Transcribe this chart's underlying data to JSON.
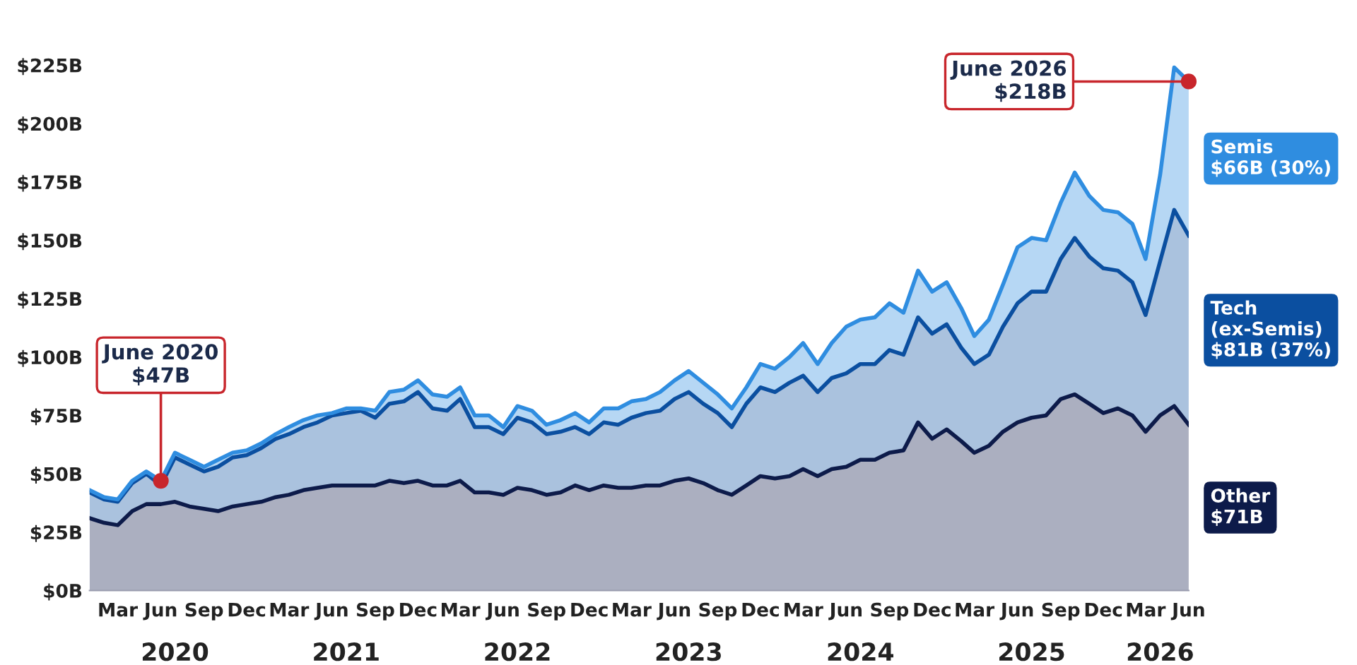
{
  "chart_data": {
    "type": "area",
    "stacked": true,
    "x": [
      "2020-01",
      "2020-02",
      "2020-03",
      "2020-04",
      "2020-05",
      "2020-06",
      "2020-07",
      "2020-08",
      "2020-09",
      "2020-10",
      "2020-11",
      "2020-12",
      "2021-01",
      "2021-02",
      "2021-03",
      "2021-04",
      "2021-05",
      "2021-06",
      "2021-07",
      "2021-08",
      "2021-09",
      "2021-10",
      "2021-11",
      "2021-12",
      "2022-01",
      "2022-02",
      "2022-03",
      "2022-04",
      "2022-05",
      "2022-06",
      "2022-07",
      "2022-08",
      "2022-09",
      "2022-10",
      "2022-11",
      "2022-12",
      "2023-01",
      "2023-02",
      "2023-03",
      "2023-04",
      "2023-05",
      "2023-06",
      "2023-07",
      "2023-08",
      "2023-09",
      "2023-10",
      "2023-11",
      "2023-12",
      "2024-01",
      "2024-02",
      "2024-03",
      "2024-04",
      "2024-05",
      "2024-06",
      "2024-07",
      "2024-08",
      "2024-09",
      "2024-10",
      "2024-11",
      "2024-12",
      "2025-01",
      "2025-02",
      "2025-03",
      "2025-04",
      "2025-05",
      "2025-06",
      "2025-07",
      "2025-08",
      "2025-09",
      "2025-10",
      "2025-11",
      "2025-12",
      "2026-01",
      "2026-02",
      "2026-03",
      "2026-04",
      "2026-05",
      "2026-06"
    ],
    "series": [
      {
        "name": "Other",
        "color": "#0d1b4a",
        "values": [
          31,
          29,
          28,
          34,
          37,
          37,
          38,
          36,
          35,
          34,
          36,
          37,
          38,
          40,
          41,
          43,
          44,
          45,
          45,
          45,
          45,
          47,
          46,
          47,
          45,
          45,
          47,
          42,
          42,
          41,
          44,
          43,
          41,
          42,
          45,
          43,
          45,
          44,
          44,
          45,
          45,
          47,
          48,
          46,
          43,
          41,
          45,
          49,
          48,
          49,
          52,
          49,
          52,
          53,
          56,
          56,
          59,
          60,
          72,
          65,
          69,
          64,
          59,
          62,
          68,
          72,
          74,
          75,
          82,
          84,
          80,
          76,
          78,
          75,
          68,
          75,
          79,
          71
        ]
      },
      {
        "name": "Tech\n(ex-Semis)",
        "color": "#0b4fa0",
        "values": [
          11,
          10,
          10,
          12,
          13,
          8,
          19,
          18,
          16,
          19,
          21,
          21,
          23,
          25,
          26,
          27,
          28,
          30,
          31,
          32,
          29,
          33,
          35,
          38,
          33,
          32,
          35,
          28,
          28,
          26,
          30,
          29,
          26,
          26,
          25,
          24,
          27,
          27,
          30,
          31,
          32,
          35,
          37,
          34,
          33,
          29,
          35,
          38,
          37,
          40,
          40,
          36,
          39,
          40,
          41,
          41,
          44,
          41,
          45,
          45,
          45,
          40,
          38,
          39,
          45,
          51,
          54,
          53,
          60,
          67,
          63,
          62,
          59,
          57,
          50,
          66,
          84,
          81
        ]
      },
      {
        "name": "Semis",
        "color": "#2f8de0",
        "values": [
          1,
          1,
          1,
          1,
          1,
          2,
          2,
          2,
          2,
          3,
          2,
          2,
          2,
          2,
          3,
          3,
          3,
          1,
          2,
          1,
          3,
          5,
          5,
          5,
          6,
          6,
          5,
          5,
          5,
          3,
          5,
          5,
          4,
          5,
          6,
          5,
          6,
          7,
          7,
          6,
          8,
          8,
          9,
          9,
          8,
          8,
          7,
          10,
          10,
          11,
          14,
          12,
          15,
          20,
          19,
          20,
          20,
          18,
          20,
          18,
          18,
          17,
          12,
          15,
          18,
          24,
          23,
          22,
          24,
          28,
          26,
          25,
          25,
          25,
          24,
          37,
          61,
          66
        ]
      }
    ],
    "ylim": [
      0,
      225
    ],
    "yticks": [
      {
        "value": 0,
        "label": "$0B"
      },
      {
        "value": 25,
        "label": "$25B"
      },
      {
        "value": 50,
        "label": "$50B"
      },
      {
        "value": 75,
        "label": "$75B"
      },
      {
        "value": 100,
        "label": "$100B"
      },
      {
        "value": 125,
        "label": "$125B"
      },
      {
        "value": 150,
        "label": "$150B"
      },
      {
        "value": 175,
        "label": "$175B"
      },
      {
        "value": 200,
        "label": "$200B"
      },
      {
        "value": 225,
        "label": "$225B"
      }
    ],
    "xlim": [
      "2020-01",
      "2026-06"
    ],
    "xticks": [
      {
        "value": "2020-03",
        "label": "Mar"
      },
      {
        "value": "2020-06",
        "label": "Jun"
      },
      {
        "value": "2020-09",
        "label": "Sep"
      },
      {
        "value": "2020-12",
        "label": "Dec"
      },
      {
        "value": "2021-03",
        "label": "Mar"
      },
      {
        "value": "2021-06",
        "label": "Jun"
      },
      {
        "value": "2021-09",
        "label": "Sep"
      },
      {
        "value": "2021-12",
        "label": "Dec"
      },
      {
        "value": "2022-03",
        "label": "Mar"
      },
      {
        "value": "2022-06",
        "label": "Jun"
      },
      {
        "value": "2022-09",
        "label": "Sep"
      },
      {
        "value": "2022-12",
        "label": "Dec"
      },
      {
        "value": "2023-03",
        "label": "Mar"
      },
      {
        "value": "2023-06",
        "label": "Jun"
      },
      {
        "value": "2023-09",
        "label": "Sep"
      },
      {
        "value": "2023-12",
        "label": "Dec"
      },
      {
        "value": "2024-03",
        "label": "Mar"
      },
      {
        "value": "2024-06",
        "label": "Jun"
      },
      {
        "value": "2024-09",
        "label": "Sep"
      },
      {
        "value": "2024-12",
        "label": "Dec"
      },
      {
        "value": "2025-03",
        "label": "Mar"
      },
      {
        "value": "2025-06",
        "label": "Jun"
      },
      {
        "value": "2025-09",
        "label": "Sep"
      },
      {
        "value": "2025-12",
        "label": "Dec"
      },
      {
        "value": "2026-03",
        "label": "Mar"
      },
      {
        "value": "2026-06",
        "label": "Jun"
      }
    ],
    "x2lim": [
      "2020-01",
      "2026-06"
    ],
    "x2ticks": [
      {
        "value": "2020-07",
        "label": "2020"
      },
      {
        "value": "2021-07",
        "label": "2021"
      },
      {
        "value": "2022-07",
        "label": "2022"
      },
      {
        "value": "2023-07",
        "label": "2023"
      },
      {
        "value": "2024-07",
        "label": "2024"
      },
      {
        "value": "2025-07",
        "label": "2025"
      },
      {
        "value": "2026-04",
        "label": "2026"
      }
    ],
    "annotations": [
      {
        "text": "June 2020\n$47B",
        "x": "2020-06",
        "y": 47
      },
      {
        "text": "June 2026\n$218B",
        "x": "2026-06",
        "y": 218
      },
      "$71B",
      "$81B (37%)",
      "$66B (30%)"
    ],
    "grid": false,
    "marker": "none",
    "line_style": "solid"
  }
}
